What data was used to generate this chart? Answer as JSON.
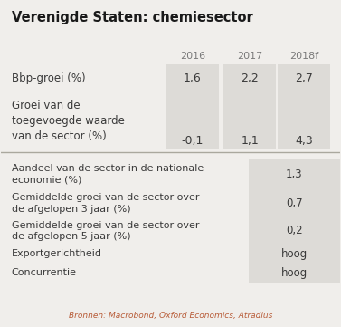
{
  "title": "Verenigde Staten: chemiesector",
  "bg_color": "#f0eeeb",
  "cell_bg": "#dddbd7",
  "col_headers": [
    "2016",
    "2017",
    "2018f"
  ],
  "row1_label": "Bbp-groei (%)",
  "row1_vals": [
    "1,6",
    "2,2",
    "2,7"
  ],
  "row2_label_lines": [
    "Groei van de",
    "toegevoegde waarde",
    "van de sector (%)"
  ],
  "row2_vals": [
    "-0,1",
    "1,1",
    "4,3"
  ],
  "section2_rows": [
    {
      "label": "Aandeel van de sector in de nationale\neconomie (%)",
      "value": "1,3"
    },
    {
      "label": "Gemiddelde groei van de sector over\nde afgelopen 3 jaar (%)",
      "value": "0,7"
    },
    {
      "label": "Gemiddelde groei van de sector over\nde afgelopen 5 jaar (%)",
      "value": "0,2"
    },
    {
      "label": "Exportgerichtheid",
      "value": "hoog"
    },
    {
      "label": "Concurrentie",
      "value": "hoog"
    }
  ],
  "footer": "Bronnen: Macrobond, Oxford Economics, Atradius",
  "footer_color": "#b85c38",
  "text_color": "#3a3a3a",
  "header_color": "#7a7a7a",
  "divider_color": "#aaa89e"
}
